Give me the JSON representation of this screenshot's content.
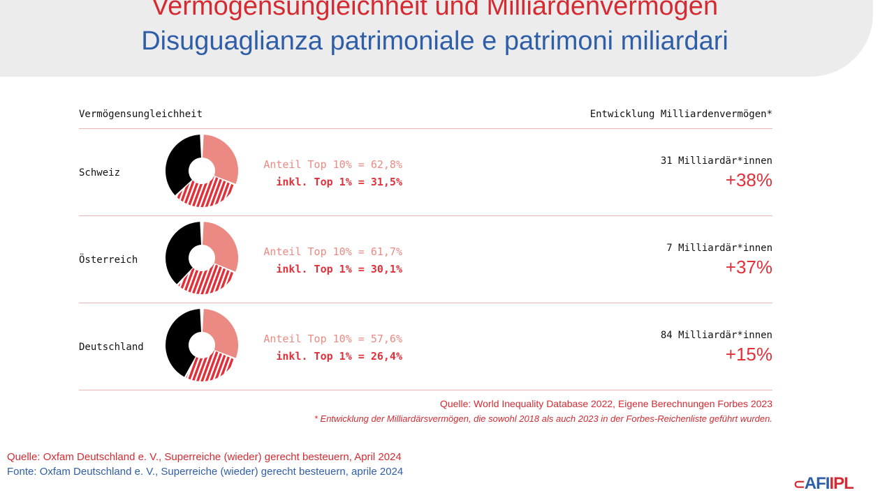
{
  "title_de": "Vermögensungleichheit und Milliardenvermögen",
  "title_it": "Disuguaglianza patrimoniale e patrimoni miliardari",
  "header_left": "Vermögensungleichheit",
  "header_right": "Entwicklung Milliardenvermögen*",
  "rows": [
    {
      "country": "Schweiz",
      "top10_label": "Anteil Top 10% = 62,8%",
      "top1_label": "inkl. Top 1% = 31,5%",
      "billionaires": "31 Milliardär*innen",
      "change": "+38%"
    },
    {
      "country": "Österreich",
      "top10_label": "Anteil Top 10% = 61,7%",
      "top1_label": "inkl. Top 1% = 30,1%",
      "billionaires": "7 Milliardär*innen",
      "change": "+37%"
    },
    {
      "country": "Deutschland",
      "top10_label": "Anteil Top 10% = 57,6%",
      "top1_label": "inkl. Top 1% = 26,4%",
      "billionaires": "84 Milliardär*innen",
      "change": "+15%"
    }
  ],
  "source_chart": "Quelle: World Inequality Database 2022, Eigene Berechnungen Forbes 2023",
  "footnote": "* Entwicklung der Milliardärsvermögen, die sowohl 2018 als auch 2023 in der Forbes-Reichenliste geführt wurden.",
  "source_de": "Quelle: Oxfam Deutschland e. V., Superreiche (wieder) gerecht besteuern, April 2024",
  "source_it": "Fonte: Oxfam Deutschland e. V., Superreiche (wieder) gerecht besteuern, aprile 2024",
  "logo": {
    "part1": "AFI",
    "part2": "IPL"
  },
  "colors": {
    "top10": "#eb8a82",
    "top1": "#e0303a",
    "rest": "#000000"
  },
  "chart_data": {
    "type": "pie",
    "categories": [
      "Schweiz",
      "Österreich",
      "Deutschland"
    ],
    "series": [
      {
        "name": "Anteil Top 10%",
        "values": [
          62.8,
          61.7,
          57.6
        ]
      },
      {
        "name": "inkl. Top 1%",
        "values": [
          31.5,
          30.1,
          26.4
        ]
      }
    ],
    "billionaire_change_pct": [
      38,
      37,
      15
    ],
    "billionaire_count": [
      31,
      7,
      84
    ]
  }
}
